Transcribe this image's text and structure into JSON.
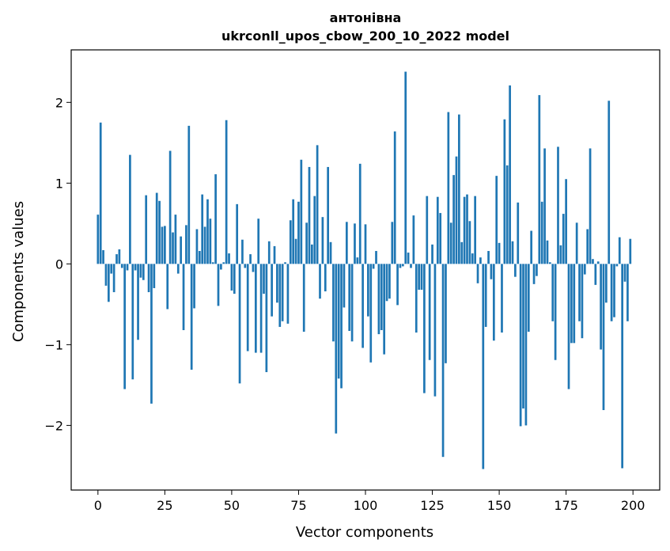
{
  "chart_data": {
    "type": "bar",
    "title": "антонівна\nukrconll_upos_cbow_200_10_2022 model",
    "title_lines": [
      "антонівна",
      "ukrconll_upos_cbow_200_10_2022 model"
    ],
    "xlabel": "Vector components",
    "ylabel": "Components values",
    "xlim": [
      -10,
      210
    ],
    "ylim": [
      -2.8,
      2.65
    ],
    "xticks": [
      0,
      25,
      50,
      75,
      100,
      125,
      150,
      175,
      200
    ],
    "xtick_labels": [
      "0",
      "25",
      "50",
      "75",
      "100",
      "125",
      "150",
      "175",
      "200"
    ],
    "yticks": [
      -2,
      -1,
      0,
      1,
      2
    ],
    "ytick_labels": [
      "−2",
      "−1",
      "0",
      "1",
      "2"
    ],
    "grid": false,
    "bar_color": "#1f77b4",
    "x": [
      0,
      1,
      2,
      3,
      4,
      5,
      6,
      7,
      8,
      9,
      10,
      11,
      12,
      13,
      14,
      15,
      16,
      17,
      18,
      19,
      20,
      21,
      22,
      23,
      24,
      25,
      26,
      27,
      28,
      29,
      30,
      31,
      32,
      33,
      34,
      35,
      36,
      37,
      38,
      39,
      40,
      41,
      42,
      43,
      44,
      45,
      46,
      47,
      48,
      49,
      50,
      51,
      52,
      53,
      54,
      55,
      56,
      57,
      58,
      59,
      60,
      61,
      62,
      63,
      64,
      65,
      66,
      67,
      68,
      69,
      70,
      71,
      72,
      73,
      74,
      75,
      76,
      77,
      78,
      79,
      80,
      81,
      82,
      83,
      84,
      85,
      86,
      87,
      88,
      89,
      90,
      91,
      92,
      93,
      94,
      95,
      96,
      97,
      98,
      99,
      100,
      101,
      102,
      103,
      104,
      105,
      106,
      107,
      108,
      109,
      110,
      111,
      112,
      113,
      114,
      115,
      116,
      117,
      118,
      119,
      120,
      121,
      122,
      123,
      124,
      125,
      126,
      127,
      128,
      129,
      130,
      131,
      132,
      133,
      134,
      135,
      136,
      137,
      138,
      139,
      140,
      141,
      142,
      143,
      144,
      145,
      146,
      147,
      148,
      149,
      150,
      151,
      152,
      153,
      154,
      155,
      156,
      157,
      158,
      159,
      160,
      161,
      162,
      163,
      164,
      165,
      166,
      167,
      168,
      169,
      170,
      171,
      172,
      173,
      174,
      175,
      176,
      177,
      178,
      179,
      180,
      181,
      182,
      183,
      184,
      185,
      186,
      187,
      188,
      189,
      190,
      191,
      192,
      193,
      194,
      195,
      196,
      197,
      198,
      199
    ],
    "values": [
      0.61,
      1.75,
      0.17,
      -0.27,
      -0.47,
      -0.12,
      -0.35,
      0.12,
      0.18,
      -0.05,
      -1.55,
      -0.08,
      1.35,
      -1.43,
      -0.08,
      -0.94,
      -0.17,
      -0.2,
      0.85,
      -0.35,
      -1.73,
      -0.3,
      0.88,
      0.78,
      0.46,
      0.47,
      -0.56,
      1.4,
      0.39,
      0.61,
      -0.12,
      0.34,
      -0.82,
      0.48,
      1.71,
      -1.31,
      -0.55,
      0.43,
      0.16,
      0.86,
      0.46,
      0.8,
      0.56,
      0.02,
      1.11,
      -0.52,
      -0.07,
      0.02,
      1.78,
      0.13,
      -0.33,
      -0.37,
      0.74,
      -1.48,
      0.3,
      -0.05,
      -1.08,
      0.12,
      -0.1,
      -1.1,
      0.56,
      -1.1,
      -0.37,
      -1.34,
      0.28,
      -0.65,
      0.22,
      -0.48,
      -0.78,
      -0.71,
      0.02,
      -0.74,
      0.54,
      0.8,
      0.31,
      0.77,
      1.29,
      -0.84,
      0.51,
      1.2,
      0.24,
      0.84,
      1.47,
      -0.43,
      0.58,
      -0.34,
      1.2,
      0.27,
      -0.96,
      -2.1,
      -1.42,
      -1.54,
      -0.54,
      0.52,
      -0.83,
      -0.96,
      0.5,
      0.08,
      1.24,
      -1.04,
      0.49,
      -0.65,
      -1.22,
      -0.06,
      0.16,
      -0.87,
      -0.82,
      -1.12,
      -0.46,
      -0.43,
      0.52,
      1.64,
      -0.51,
      -0.05,
      -0.03,
      2.38,
      0.14,
      -0.05,
      0.6,
      -0.85,
      -0.32,
      -0.32,
      -1.6,
      0.84,
      -1.19,
      0.24,
      -1.64,
      0.83,
      0.63,
      -2.39,
      -1.23,
      1.88,
      0.51,
      1.1,
      1.33,
      1.85,
      0.27,
      0.83,
      0.86,
      0.53,
      0.13,
      0.84,
      -0.24,
      0.08,
      -2.54,
      -0.78,
      0.16,
      -0.19,
      -0.95,
      1.09,
      0.26,
      -0.85,
      1.79,
      1.22,
      2.21,
      0.28,
      -0.16,
      0.76,
      -2.01,
      -1.79,
      -2.0,
      -0.84,
      0.41,
      -0.25,
      -0.15,
      2.09,
      0.77,
      1.43,
      0.29,
      0.02,
      -0.71,
      -1.19,
      1.45,
      0.23,
      0.62,
      1.05,
      -1.55,
      -0.98,
      -0.98,
      0.51,
      -0.71,
      -0.92,
      -0.13,
      0.43,
      1.43,
      0.06,
      -0.26,
      0.03,
      -1.06,
      -1.81,
      -0.48,
      2.02,
      -0.71,
      -0.66,
      -0.03,
      0.33,
      -2.53,
      -0.22,
      -0.71,
      0.31
    ]
  }
}
